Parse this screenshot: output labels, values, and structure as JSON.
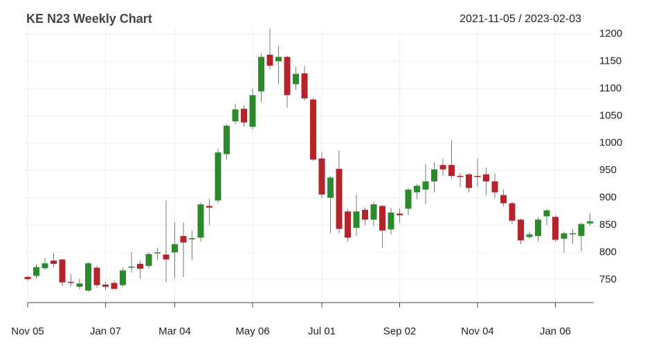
{
  "chart_data": {
    "type": "candlestick",
    "title": "KE N23 Weekly Chart",
    "date_range": "2021-11-05 / 2023-02-03",
    "categories": [
      "Nov 05",
      null,
      null,
      null,
      null,
      null,
      null,
      null,
      null,
      "Jan 07",
      null,
      null,
      null,
      null,
      null,
      null,
      null,
      "Mar 04",
      null,
      null,
      null,
      null,
      null,
      null,
      null,
      null,
      "May 06",
      null,
      null,
      null,
      null,
      null,
      null,
      null,
      "Jul 01",
      null,
      null,
      null,
      null,
      null,
      null,
      null,
      null,
      "Sep 02",
      null,
      null,
      null,
      null,
      null,
      null,
      null,
      null,
      "Nov 04",
      null,
      null,
      null,
      null,
      null,
      null,
      null,
      null,
      "Jan 06",
      null,
      null,
      null,
      null
    ],
    "series": [
      {
        "up_color": "#2b8a2b",
        "down_color": "#b5242a",
        "open": [
          755,
          757,
          771,
          785,
          787,
          746,
          737,
          730,
          772,
          741,
          744,
          740,
          772,
          779,
          775,
          799,
          796,
          800,
          830,
          824,
          827,
          885,
          895,
          980,
          1040,
          1063,
          1030,
          1095,
          1162,
          1150,
          1158,
          1108,
          1128,
          1080,
          972,
          900,
          953,
          875,
          845,
          878,
          860,
          885,
          842,
          871,
          880,
          910,
          915,
          930,
          960,
          960,
          940,
          943,
          940,
          943,
          930,
          905,
          890,
          860,
          828,
          830,
          866,
          865,
          825,
          833,
          830,
          853
        ],
        "high": [
          758,
          778,
          790,
          798,
          788,
          760,
          752,
          782,
          775,
          746,
          748,
          772,
          800,
          785,
          800,
          808,
          895,
          855,
          855,
          840,
          892,
          898,
          990,
          1035,
          1072,
          1070,
          1100,
          1165,
          1210,
          1178,
          1160,
          1140,
          1142,
          1082,
          983,
          940,
          987,
          880,
          906,
          882,
          892,
          887,
          882,
          880,
          918,
          925,
          962,
          965,
          972,
          1005,
          945,
          945,
          972,
          955,
          945,
          915,
          893,
          862,
          838,
          865,
          880,
          868,
          838,
          843,
          855,
          872
        ],
        "low": [
          748,
          752,
          768,
          773,
          738,
          738,
          732,
          728,
          735,
          731,
          733,
          738,
          763,
          752,
          770,
          786,
          745,
          753,
          755,
          785,
          820,
          850,
          890,
          970,
          1035,
          1030,
          1025,
          1075,
          1135,
          1108,
          1065,
          1098,
          1078,
          968,
          900,
          835,
          835,
          820,
          830,
          850,
          848,
          808,
          833,
          855,
          868,
          898,
          888,
          910,
          940,
          935,
          920,
          910,
          920,
          905,
          900,
          885,
          852,
          815,
          825,
          820,
          850,
          820,
          800,
          815,
          802,
          848
        ],
        "close": [
          751,
          773,
          780,
          779,
          745,
          744,
          743,
          780,
          740,
          737,
          733,
          767,
          774,
          770,
          797,
          800,
          787,
          815,
          818,
          826,
          888,
          882,
          983,
          1032,
          1062,
          1038,
          1088,
          1158,
          1142,
          1158,
          1088,
          1127,
          1082,
          970,
          906,
          937,
          843,
          827,
          875,
          860,
          888,
          840,
          873,
          868,
          915,
          922,
          930,
          952,
          952,
          940,
          938,
          918,
          938,
          930,
          910,
          890,
          858,
          822,
          833,
          860,
          877,
          823,
          835,
          835,
          852,
          857
        ]
      }
    ],
    "ylim": [
      708,
      1209
    ],
    "yticks": [
      750,
      800,
      850,
      900,
      950,
      1000,
      1050,
      1100,
      1150,
      1200
    ],
    "grid": true
  }
}
